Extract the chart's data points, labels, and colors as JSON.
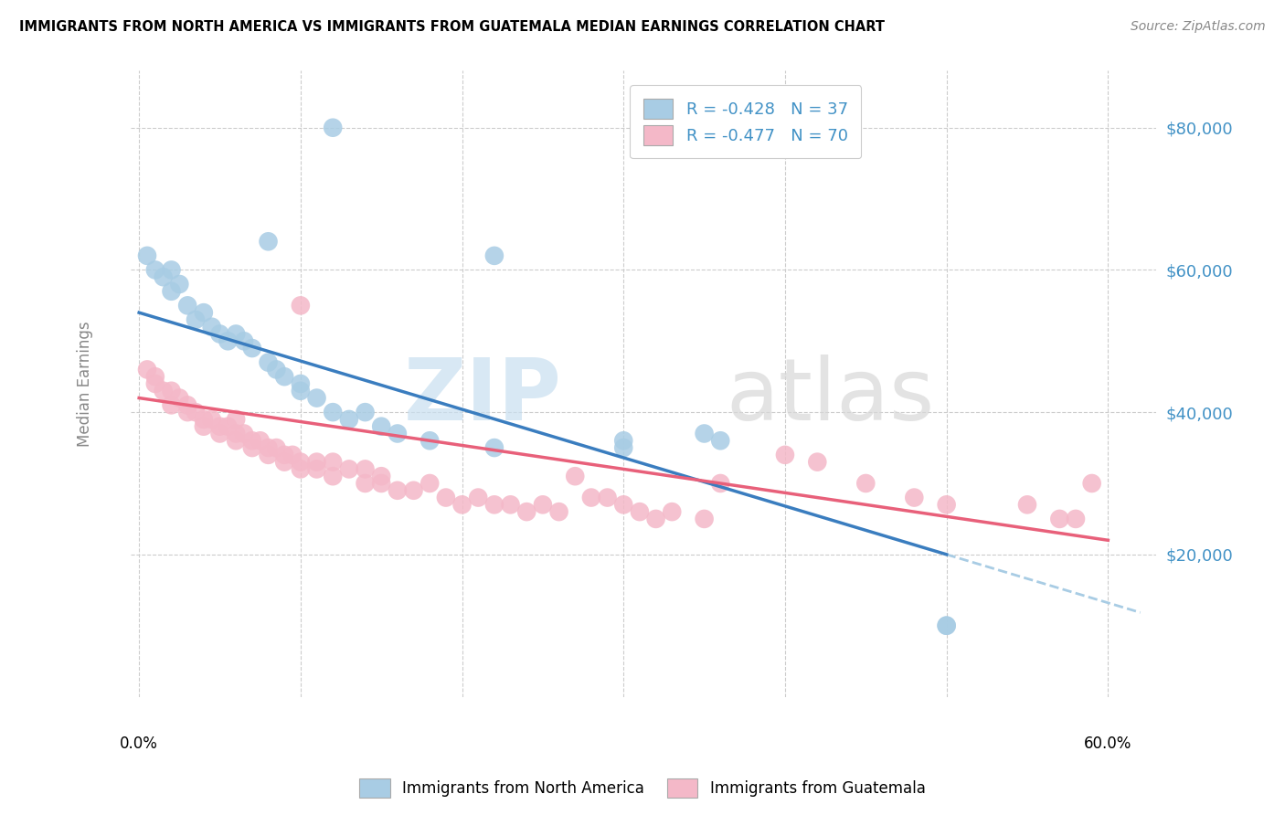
{
  "title": "IMMIGRANTS FROM NORTH AMERICA VS IMMIGRANTS FROM GUATEMALA MEDIAN EARNINGS CORRELATION CHART",
  "source": "Source: ZipAtlas.com",
  "ylabel": "Median Earnings",
  "y_ticks": [
    20000,
    40000,
    60000,
    80000
  ],
  "y_tick_labels": [
    "$20,000",
    "$40,000",
    "$60,000",
    "$80,000"
  ],
  "y_min": 0,
  "y_max": 88000,
  "x_min": -0.005,
  "x_max": 0.63,
  "blue_R": -0.428,
  "blue_N": 37,
  "pink_R": -0.477,
  "pink_N": 70,
  "blue_color": "#a8cce4",
  "blue_line_color": "#3a7dbf",
  "pink_color": "#f4b8c8",
  "pink_line_color": "#e8607a",
  "legend_label_blue": "Immigrants from North America",
  "legend_label_pink": "Immigrants from Guatemala",
  "blue_line_x0": 0.0,
  "blue_line_y0": 54000,
  "blue_line_x1": 0.5,
  "blue_line_y1": 20000,
  "blue_line_ext_x0": 0.5,
  "blue_line_ext_x1": 0.62,
  "pink_line_x0": 0.0,
  "pink_line_y0": 42000,
  "pink_line_x1": 0.6,
  "pink_line_y1": 22000,
  "blue_points_x": [
    0.005,
    0.01,
    0.015,
    0.02,
    0.02,
    0.025,
    0.03,
    0.035,
    0.04,
    0.045,
    0.05,
    0.055,
    0.06,
    0.065,
    0.07,
    0.08,
    0.085,
    0.09,
    0.1,
    0.1,
    0.11,
    0.12,
    0.13,
    0.14,
    0.15,
    0.16,
    0.18,
    0.22,
    0.3,
    0.3,
    0.35,
    0.36,
    0.22,
    0.5,
    0.5,
    0.12,
    0.08
  ],
  "blue_points_y": [
    62000,
    60000,
    59000,
    57000,
    60000,
    58000,
    55000,
    53000,
    54000,
    52000,
    51000,
    50000,
    51000,
    50000,
    49000,
    47000,
    46000,
    45000,
    44000,
    43000,
    42000,
    40000,
    39000,
    40000,
    38000,
    37000,
    36000,
    35000,
    36000,
    35000,
    37000,
    36000,
    62000,
    10000,
    10000,
    80000,
    64000
  ],
  "pink_points_x": [
    0.005,
    0.01,
    0.01,
    0.015,
    0.02,
    0.02,
    0.025,
    0.03,
    0.03,
    0.035,
    0.04,
    0.04,
    0.045,
    0.05,
    0.05,
    0.055,
    0.06,
    0.06,
    0.065,
    0.07,
    0.07,
    0.075,
    0.08,
    0.08,
    0.085,
    0.09,
    0.09,
    0.095,
    0.1,
    0.1,
    0.11,
    0.11,
    0.12,
    0.12,
    0.13,
    0.14,
    0.14,
    0.15,
    0.15,
    0.16,
    0.17,
    0.18,
    0.19,
    0.2,
    0.21,
    0.22,
    0.23,
    0.24,
    0.25,
    0.26,
    0.27,
    0.28,
    0.29,
    0.3,
    0.31,
    0.32,
    0.33,
    0.35,
    0.36,
    0.4,
    0.42,
    0.45,
    0.48,
    0.5,
    0.55,
    0.57,
    0.58,
    0.59,
    0.1,
    0.06
  ],
  "pink_points_y": [
    46000,
    45000,
    44000,
    43000,
    43000,
    41000,
    42000,
    40000,
    41000,
    40000,
    39000,
    38000,
    39000,
    38000,
    37000,
    38000,
    37000,
    36000,
    37000,
    36000,
    35000,
    36000,
    35000,
    34000,
    35000,
    34000,
    33000,
    34000,
    33000,
    32000,
    33000,
    32000,
    33000,
    31000,
    32000,
    32000,
    30000,
    31000,
    30000,
    29000,
    29000,
    30000,
    28000,
    27000,
    28000,
    27000,
    27000,
    26000,
    27000,
    26000,
    31000,
    28000,
    28000,
    27000,
    26000,
    25000,
    26000,
    25000,
    30000,
    34000,
    33000,
    30000,
    28000,
    27000,
    27000,
    25000,
    25000,
    30000,
    55000,
    39000
  ],
  "x_grid_ticks": [
    0.0,
    0.1,
    0.2,
    0.3,
    0.4,
    0.5,
    0.6
  ]
}
